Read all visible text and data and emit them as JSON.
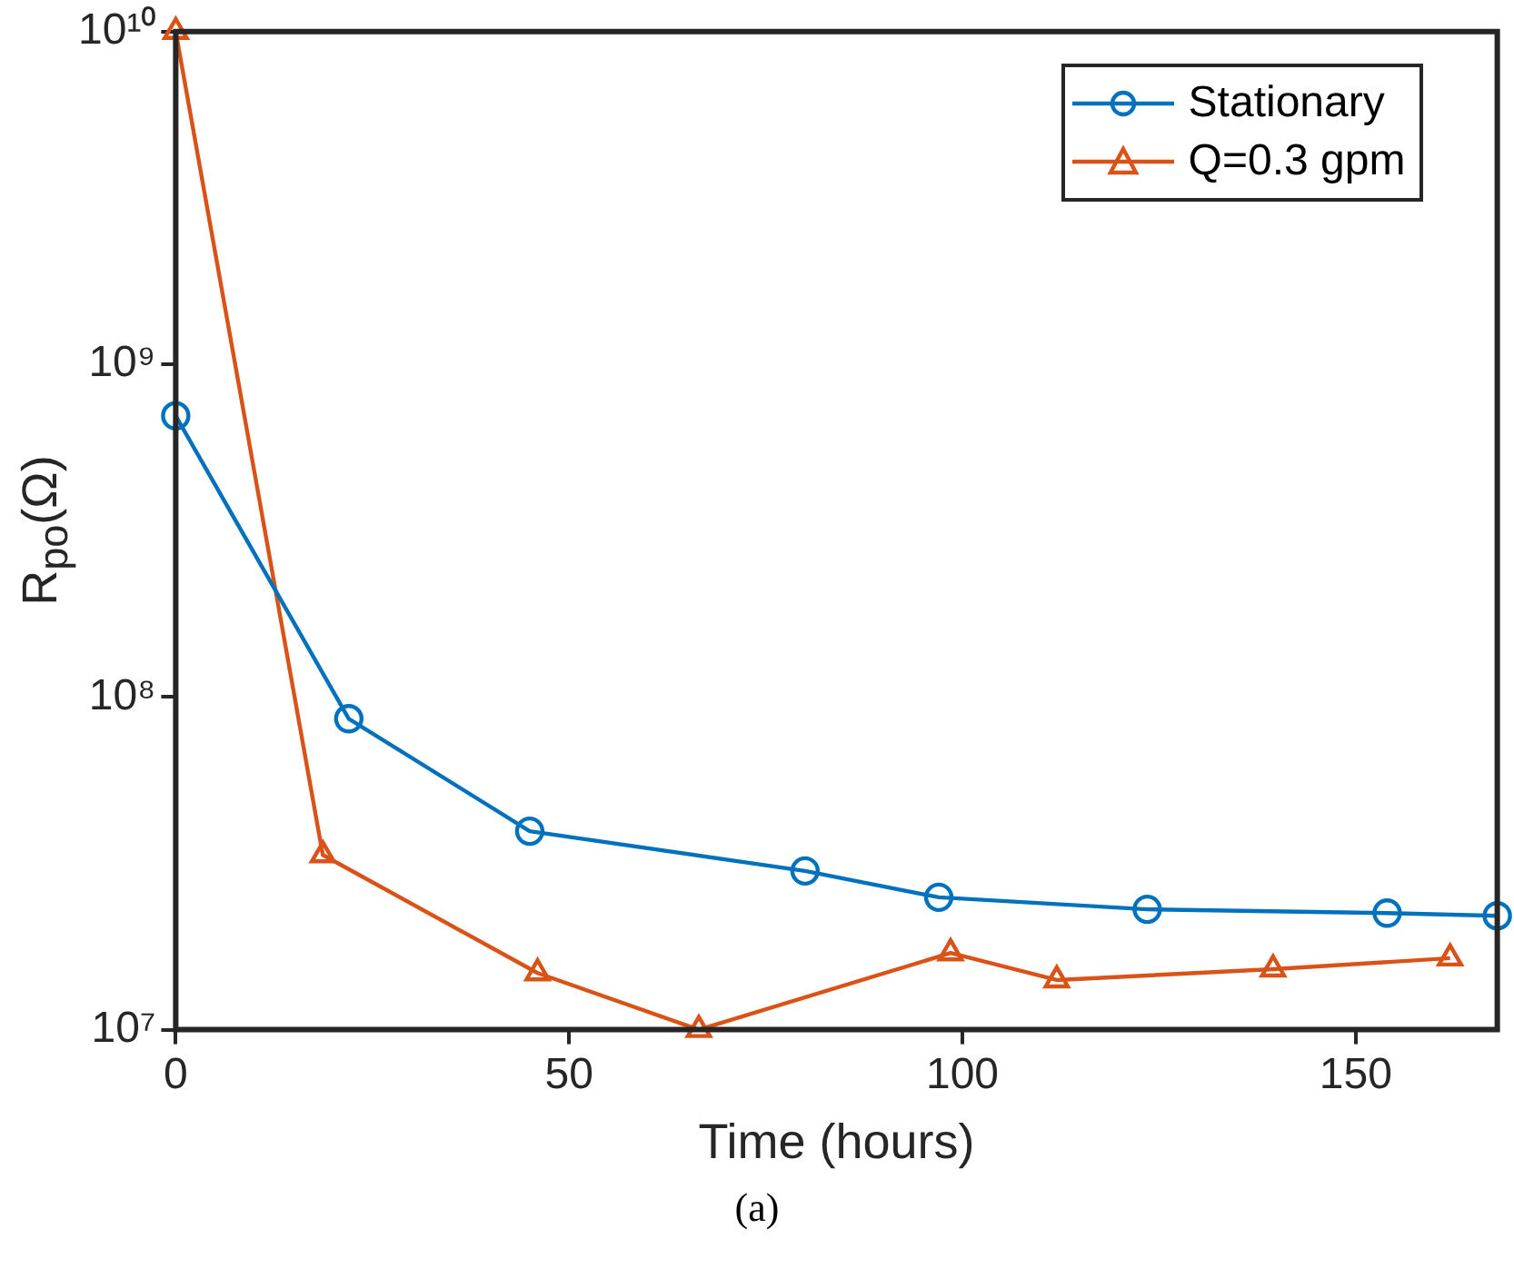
{
  "chart_data": {
    "type": "line",
    "xlabel": "Time (hours)",
    "ylabel": "R$_{po}$(Ω)",
    "annotations": [
      "(a)"
    ],
    "xlim": [
      0,
      168
    ],
    "xticks": [
      0,
      50,
      100,
      150
    ],
    "ylim": [
      10000000,
      10000000000
    ],
    "yticks": [
      {
        "value": 10000000,
        "label": "10⁷"
      },
      {
        "value": 100000000,
        "label": "10⁸"
      },
      {
        "value": 1000000000,
        "label": "10⁹"
      },
      {
        "value": 10000000000,
        "label": "10¹⁰"
      }
    ],
    "log": "y",
    "grid": false,
    "legend": "top right",
    "line_style": "solid",
    "series": [
      {
        "name": "Stationary",
        "color": "#0072bd",
        "marker": "circle",
        "x": [
          0,
          22,
          45,
          80,
          97,
          123.5,
          154,
          168
        ],
        "values": [
          700000000,
          86000000,
          39500000,
          30000000,
          25000000,
          23000000,
          22400000,
          22000000
        ]
      },
      {
        "name": "Q=0.3 gpm",
        "color": "#d95319",
        "marker": "triangle",
        "x": [
          0,
          18.7,
          46,
          66.5,
          98.5,
          112,
          139.5,
          162
        ],
        "values": [
          10000000000,
          33500000,
          14800000,
          10000000,
          17000000,
          14100000,
          15200000,
          16400000
        ]
      }
    ]
  }
}
